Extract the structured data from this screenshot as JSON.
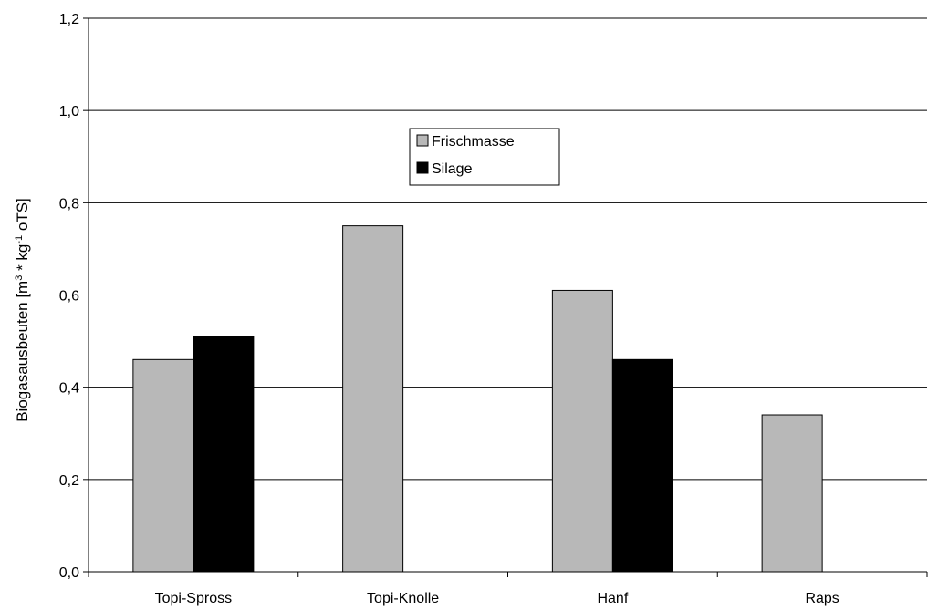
{
  "chart_data": {
    "type": "bar",
    "categories": [
      "Topi-Spross",
      "Topi-Knolle",
      "Hanf",
      "Raps"
    ],
    "series": [
      {
        "name": "Frischmasse",
        "values": [
          0.46,
          0.75,
          0.61,
          0.34
        ],
        "color": "#b8b8b8"
      },
      {
        "name": "Silage",
        "values": [
          0.51,
          null,
          0.46,
          null
        ],
        "color": "#000000"
      }
    ],
    "ylabel": {
      "prefix": "Biogasausbeuten [m",
      "sup1": "3",
      "mid": " * kg",
      "sup2": "-1",
      "suffix": " oTS]"
    },
    "ylim": [
      0,
      1.2
    ],
    "yticks": [
      "0,0",
      "0,2",
      "0,4",
      "0,6",
      "0,8",
      "1,0",
      "1,2"
    ],
    "grid": true,
    "legend_position": "top-center"
  }
}
